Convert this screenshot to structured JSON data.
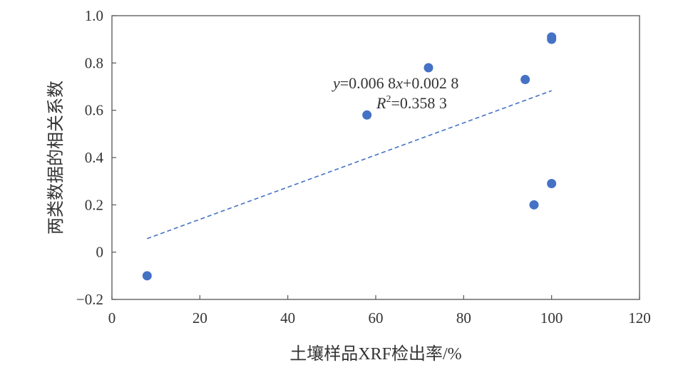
{
  "chart_data": {
    "type": "scatter",
    "xlabel": "土壤样品XRF检出率/%",
    "ylabel": "两类数据的相关系数",
    "xlim": [
      0,
      120
    ],
    "ylim": [
      -0.2,
      1.0
    ],
    "x_ticks": [
      "0",
      "20",
      "40",
      "60",
      "80",
      "100",
      "120"
    ],
    "y_ticks": [
      "−0.2",
      "0",
      "0.2",
      "0.4",
      "0.6",
      "0.8",
      "1.0"
    ],
    "grid": false,
    "legend": "none",
    "series": [
      {
        "points": [
          {
            "x": 8,
            "y": -0.1
          },
          {
            "x": 58,
            "y": 0.58
          },
          {
            "x": 72,
            "y": 0.78
          },
          {
            "x": 94,
            "y": 0.73
          },
          {
            "x": 96,
            "y": 0.2
          },
          {
            "x": 100,
            "y": 0.29
          },
          {
            "x": 100,
            "y": 0.9
          },
          {
            "x": 100,
            "y": 0.91
          }
        ],
        "color": "#4472c4"
      }
    ],
    "trendline": {
      "type": "linear",
      "slope": 0.0068,
      "intercept": 0.0028,
      "x_range": [
        8,
        100
      ],
      "style": "dashed",
      "color": "#4472c4",
      "equation_parts": {
        "y": "y",
        "eq_mid": "=0.006 8",
        "x": "x",
        "eq_end": "+0.002 8",
        "r": "R",
        "r_sup": "2",
        "r_rest": "=0.358 3"
      }
    }
  }
}
